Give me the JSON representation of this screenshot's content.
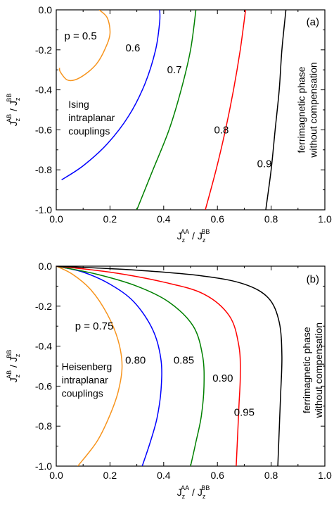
{
  "chart_data": [
    {
      "type": "line",
      "panel_label": "(a)",
      "xlabel": {
        "base": "J",
        "sub": "z",
        "sup": "AA",
        "sep": " / ",
        "base2": "J",
        "sub2": "z",
        "sup2": "BB"
      },
      "ylabel": {
        "base": "J",
        "sub": "z",
        "sup": "AB",
        "sep": " / ",
        "base2": "J",
        "sub2": "z",
        "sup2": "BB"
      },
      "xlim": [
        0.0,
        1.0
      ],
      "ylim": [
        -1.0,
        0.0
      ],
      "xticks": [
        "0.0",
        "0.2",
        "0.4",
        "0.6",
        "0.8",
        "1.0"
      ],
      "yticks": [
        "0.0",
        "-0.2",
        "-0.4",
        "-0.6",
        "-0.8",
        "-1.0"
      ],
      "x_minor_step": 0.1,
      "y_minor_step": 0.1,
      "annotations": [
        {
          "id": "p-label",
          "text": "p = 0.5"
        },
        {
          "id": "couplings",
          "lines": [
            "Ising",
            "intraplanar",
            "couplings"
          ]
        },
        {
          "id": "phase",
          "lines": [
            "ferrimagnetic phase",
            "without compensation"
          ]
        }
      ],
      "series": [
        {
          "label": "0.5",
          "color": "#f7941d",
          "label_pos": [
            null,
            null
          ],
          "points": [
            [
              0.16,
              0.0
            ],
            [
              0.19,
              -0.04
            ],
            [
              0.2,
              -0.12
            ],
            [
              0.18,
              -0.2
            ],
            [
              0.15,
              -0.27
            ],
            [
              0.11,
              -0.32
            ],
            [
              0.07,
              -0.35
            ],
            [
              0.04,
              -0.35
            ],
            [
              0.015,
              -0.31
            ],
            [
              0.012,
              -0.29
            ]
          ]
        },
        {
          "label": "0.6",
          "color": "#0000ff",
          "label_pos": [
            0.285,
            -0.19
          ],
          "points": [
            [
              0.385,
              0.0
            ],
            [
              0.385,
              -0.06
            ],
            [
              0.37,
              -0.2
            ],
            [
              0.33,
              -0.37
            ],
            [
              0.27,
              -0.53
            ],
            [
              0.19,
              -0.67
            ],
            [
              0.1,
              -0.78
            ],
            [
              0.02,
              -0.85
            ]
          ]
        },
        {
          "label": "0.7",
          "color": "#008000",
          "label_pos": [
            0.44,
            -0.3
          ],
          "points": [
            [
              0.52,
              0.0
            ],
            [
              0.5,
              -0.2
            ],
            [
              0.465,
              -0.4
            ],
            [
              0.42,
              -0.6
            ],
            [
              0.36,
              -0.8
            ],
            [
              0.3,
              -1.0
            ]
          ]
        },
        {
          "label": "0.8",
          "color": "#ff0000",
          "label_pos": [
            0.615,
            -0.6
          ],
          "points": [
            [
              0.705,
              0.0
            ],
            [
              0.685,
              -0.2
            ],
            [
              0.66,
              -0.4
            ],
            [
              0.63,
              -0.6
            ],
            [
              0.595,
              -0.8
            ],
            [
              0.555,
              -1.0
            ]
          ]
        },
        {
          "label": "0.9",
          "color": "#000000",
          "label_pos": [
            0.775,
            -0.77
          ],
          "points": [
            [
              0.855,
              0.0
            ],
            [
              0.84,
              -0.2
            ],
            [
              0.83,
              -0.4
            ],
            [
              0.815,
              -0.6
            ],
            [
              0.8,
              -0.8
            ],
            [
              0.78,
              -1.0
            ]
          ]
        }
      ]
    },
    {
      "type": "line",
      "panel_label": "(b)",
      "xlabel": {
        "base": "J",
        "sub": "z",
        "sup": "AA",
        "sep": " / ",
        "base2": "J",
        "sub2": "z",
        "sup2": "BB"
      },
      "ylabel": {
        "base": "J",
        "sub": "z",
        "sup": "AB",
        "sep": " / ",
        "base2": "J",
        "sub2": "z",
        "sup2": "BB"
      },
      "xlim": [
        0.0,
        1.0
      ],
      "ylim": [
        -1.0,
        0.0
      ],
      "xticks": [
        "0.0",
        "0.2",
        "0.4",
        "0.6",
        "0.8",
        "1.0"
      ],
      "yticks": [
        "0.0",
        "-0.2",
        "-0.4",
        "-0.6",
        "-0.8",
        "-1.0"
      ],
      "x_minor_step": 0.1,
      "y_minor_step": 0.1,
      "annotations": [
        {
          "id": "p-label",
          "text": "p = 0.75"
        },
        {
          "id": "couplings",
          "lines": [
            "Heisenberg",
            "intraplanar",
            "couplings"
          ]
        },
        {
          "id": "phase",
          "lines": [
            "ferrimagnetic phase",
            "without compensation"
          ]
        }
      ],
      "series": [
        {
          "label": "0.75",
          "color": "#f7941d",
          "label_pos": [
            null,
            null
          ],
          "points": [
            [
              0.0,
              0.0
            ],
            [
              0.06,
              -0.04
            ],
            [
              0.13,
              -0.12
            ],
            [
              0.19,
              -0.24
            ],
            [
              0.23,
              -0.37
            ],
            [
              0.245,
              -0.5
            ],
            [
              0.23,
              -0.63
            ],
            [
              0.195,
              -0.76
            ],
            [
              0.15,
              -0.88
            ],
            [
              0.08,
              -1.0
            ]
          ]
        },
        {
          "label": "0.80",
          "color": "#0000ff",
          "label_pos": [
            0.295,
            -0.47
          ],
          "points": [
            [
              0.0,
              0.0
            ],
            [
              0.1,
              -0.03
            ],
            [
              0.2,
              -0.09
            ],
            [
              0.29,
              -0.18
            ],
            [
              0.36,
              -0.32
            ],
            [
              0.39,
              -0.47
            ],
            [
              0.39,
              -0.62
            ],
            [
              0.375,
              -0.76
            ],
            [
              0.35,
              -0.88
            ],
            [
              0.32,
              -1.0
            ]
          ]
        },
        {
          "label": "0.85",
          "color": "#008000",
          "label_pos": [
            0.475,
            -0.47
          ],
          "points": [
            [
              0.0,
              0.0
            ],
            [
              0.15,
              -0.04
            ],
            [
              0.3,
              -0.1
            ],
            [
              0.42,
              -0.18
            ],
            [
              0.51,
              -0.3
            ],
            [
              0.545,
              -0.45
            ],
            [
              0.55,
              -0.6
            ],
            [
              0.54,
              -0.75
            ],
            [
              0.52,
              -0.88
            ],
            [
              0.5,
              -1.0
            ]
          ]
        },
        {
          "label": "0.90",
          "color": "#ff0000",
          "label_pos": [
            0.62,
            -0.56
          ],
          "points": [
            [
              0.0,
              0.0
            ],
            [
              0.2,
              -0.03
            ],
            [
              0.4,
              -0.08
            ],
            [
              0.55,
              -0.14
            ],
            [
              0.645,
              -0.25
            ],
            [
              0.68,
              -0.4
            ],
            [
              0.685,
              -0.55
            ],
            [
              0.68,
              -0.7
            ],
            [
              0.675,
              -0.85
            ],
            [
              0.67,
              -1.0
            ]
          ]
        },
        {
          "label": "0.95",
          "color": "#000000",
          "label_pos": [
            0.7,
            -0.73
          ],
          "points": [
            [
              0.0,
              0.0
            ],
            [
              0.3,
              -0.02
            ],
            [
              0.55,
              -0.05
            ],
            [
              0.7,
              -0.09
            ],
            [
              0.79,
              -0.16
            ],
            [
              0.83,
              -0.28
            ],
            [
              0.84,
              -0.45
            ],
            [
              0.835,
              -0.65
            ],
            [
              0.83,
              -0.82
            ],
            [
              0.825,
              -1.0
            ]
          ]
        }
      ]
    }
  ]
}
